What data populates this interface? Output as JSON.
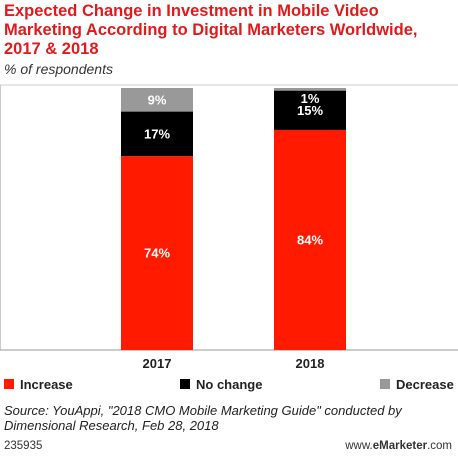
{
  "title": "Expected Change in Investment in Mobile Video\nMarketing According to Digital Marketers Worldwide,\n2017 & 2018",
  "subtitle": "% of respondents",
  "chart_data": {
    "type": "bar",
    "stacked": true,
    "categories": [
      "2017",
      "2018"
    ],
    "series": [
      {
        "name": "Increase",
        "color": "#ff1a00",
        "values": [
          74,
          84
        ],
        "labels": [
          "74%",
          "84%"
        ]
      },
      {
        "name": "No change",
        "color": "#000000",
        "values": [
          17,
          15
        ],
        "labels": [
          "17%",
          "15%"
        ]
      },
      {
        "name": "Decrease",
        "color": "#999999",
        "values": [
          9,
          1
        ],
        "labels": [
          "9%",
          "1%"
        ]
      }
    ],
    "ylim": [
      0,
      100
    ],
    "legend_position": "bottom"
  },
  "source": "Source: YouAppi, \"2018 CMO Mobile Marketing Guide\" conducted by\nDimensional Research, Feb 28, 2018",
  "footer_id": "235935",
  "brand": {
    "prefix": "www.",
    "name": "eMarketer",
    "suffix": ".com"
  }
}
